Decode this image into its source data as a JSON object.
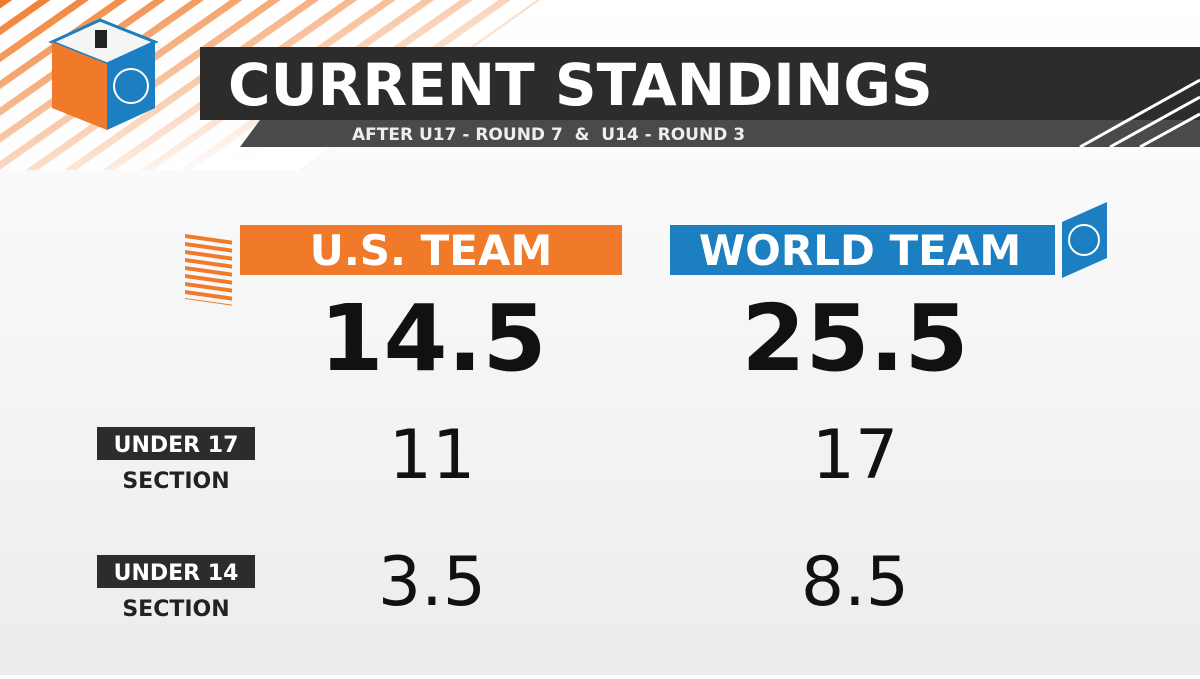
{
  "header": {
    "title": "CURRENT STANDINGS",
    "subtitle": "AFTER U17 - ROUND 7  &  U14 - ROUND 3"
  },
  "teams": [
    {
      "name": "U.S. TEAM",
      "total": 14.5
    },
    {
      "name": "WORLD TEAM",
      "total": 25.5
    }
  ],
  "sections": [
    {
      "label": "UNDER 17",
      "sublabel": "SECTION",
      "scores": [
        11,
        17
      ]
    },
    {
      "label": "UNDER 14",
      "sublabel": "SECTION",
      "scores": [
        3.5,
        8.5
      ]
    }
  ]
}
